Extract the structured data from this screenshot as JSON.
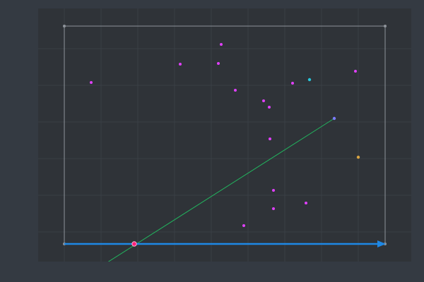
{
  "scene": {
    "colors": {
      "background": "#343a42",
      "panel": "#2f3338",
      "grid": "#3a3f45",
      "frame": "#8e939a",
      "axis_arrow": "#1e88e5",
      "line_segment": "#22b35e",
      "primary_point": "#e040fb",
      "accent_point_teal": "#26c6da",
      "accent_point_purple": "#7c7cff",
      "accent_point_orange": "#d9a441",
      "origin_marker": "#ff1f7a"
    },
    "icons": [
      "vertex-handle-icon",
      "arrow-head-icon",
      "origin-marker-icon"
    ]
  }
}
